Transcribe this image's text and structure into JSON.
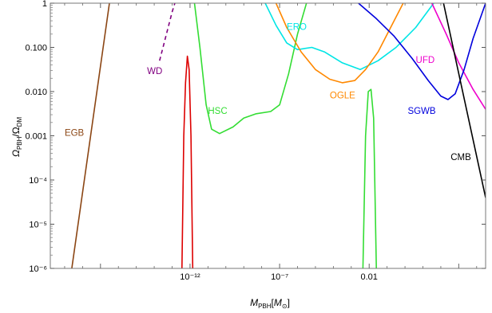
{
  "chart_data": {
    "type": "line",
    "xlabel": "M_PBH[M_⊙]",
    "ylabel": "Ω_PBH/Ω_DM",
    "x_scale": "log10",
    "y_scale": "log10",
    "xlim": [
      -19.8,
      4.5
    ],
    "ylim": [
      -6,
      0
    ],
    "x_ticks": [
      {
        "log": -12,
        "label": "10⁻¹²"
      },
      {
        "log": -7,
        "label": "10⁻⁷"
      },
      {
        "log": -2,
        "label": "0.01"
      }
    ],
    "y_ticks": [
      {
        "log": 0,
        "label": "1"
      },
      {
        "log": -1,
        "label": "0.100"
      },
      {
        "log": -2,
        "label": "0.010"
      },
      {
        "log": -3,
        "label": "0.001"
      },
      {
        "log": -4,
        "label": "10⁻⁴"
      },
      {
        "log": -5,
        "label": "10⁻⁵"
      },
      {
        "log": -6,
        "label": "10⁻⁶"
      }
    ],
    "series": [
      {
        "name": "EGB",
        "color": "#8B4513",
        "dashed": false,
        "points": [
          [
            -18.6,
            -6
          ],
          [
            -16.5,
            0
          ]
        ]
      },
      {
        "name": "WD",
        "color": "#800080",
        "dashed": true,
        "points": [
          [
            -13.7,
            -1.3
          ],
          [
            -13.0,
            -0.2
          ],
          [
            -12.85,
            0
          ]
        ]
      },
      {
        "name": "",
        "color": "#dd0000",
        "dashed": false,
        "points": [
          [
            -12.45,
            -6
          ],
          [
            -12.35,
            -3
          ],
          [
            -12.25,
            -1.8
          ],
          [
            -12.15,
            -1.2
          ],
          [
            -12.05,
            -1.5
          ],
          [
            -11.95,
            -3
          ],
          [
            -11.85,
            -6
          ]
        ]
      },
      {
        "name": "HSC",
        "color": "#33dd33",
        "dashed": false,
        "points": [
          [
            -11.75,
            0
          ],
          [
            -11.45,
            -1.0
          ],
          [
            -11.1,
            -2.3
          ],
          [
            -10.8,
            -2.85
          ],
          [
            -10.35,
            -2.95
          ],
          [
            -9.6,
            -2.8
          ],
          [
            -9.0,
            -2.6
          ],
          [
            -8.3,
            -2.5
          ],
          [
            -7.5,
            -2.45
          ],
          [
            -7.0,
            -2.3
          ],
          [
            -6.5,
            -1.6
          ],
          [
            -6.0,
            -0.7
          ],
          [
            -5.5,
            0
          ]
        ]
      },
      {
        "name": "",
        "color": "#33dd33",
        "dashed": false,
        "points": [
          [
            -2.35,
            -6
          ],
          [
            -2.2,
            -3
          ],
          [
            -2.05,
            -2.0
          ],
          [
            -1.9,
            -1.95
          ],
          [
            -1.75,
            -2.6
          ],
          [
            -1.6,
            -6
          ]
        ]
      },
      {
        "name": "ERO",
        "color": "#00e5e5",
        "dashed": false,
        "points": [
          [
            -7.8,
            0
          ],
          [
            -7.2,
            -0.5
          ],
          [
            -6.6,
            -0.9
          ],
          [
            -6.0,
            -1.05
          ],
          [
            -5.2,
            -1.0
          ],
          [
            -4.5,
            -1.1
          ],
          [
            -3.5,
            -1.35
          ],
          [
            -2.5,
            -1.5
          ],
          [
            -1.5,
            -1.3
          ],
          [
            -0.5,
            -1.0
          ],
          [
            0.6,
            -0.55
          ],
          [
            1.6,
            0
          ]
        ]
      },
      {
        "name": "OGLE",
        "color": "#ff8800",
        "dashed": false,
        "points": [
          [
            -7.2,
            0
          ],
          [
            -6.6,
            -0.55
          ],
          [
            -5.8,
            -1.1
          ],
          [
            -5.0,
            -1.5
          ],
          [
            -4.2,
            -1.72
          ],
          [
            -3.5,
            -1.8
          ],
          [
            -2.8,
            -1.75
          ],
          [
            -2.2,
            -1.5
          ],
          [
            -1.5,
            -1.1
          ],
          [
            -0.8,
            -0.55
          ],
          [
            -0.1,
            0
          ]
        ]
      },
      {
        "name": "UFD",
        "color": "#ee00cc",
        "dashed": false,
        "points": [
          [
            1.5,
            0
          ],
          [
            2.3,
            -0.7
          ],
          [
            3.0,
            -1.35
          ],
          [
            3.8,
            -1.95
          ],
          [
            4.5,
            -2.4
          ]
        ]
      },
      {
        "name": "SGWB",
        "color": "#0000dd",
        "dashed": false,
        "points": [
          [
            -2.6,
            0
          ],
          [
            -1.6,
            -0.35
          ],
          [
            -0.6,
            -0.75
          ],
          [
            0.4,
            -1.25
          ],
          [
            1.3,
            -1.75
          ],
          [
            2.0,
            -2.1
          ],
          [
            2.4,
            -2.18
          ],
          [
            2.8,
            -2.05
          ],
          [
            3.3,
            -1.5
          ],
          [
            3.8,
            -0.8
          ],
          [
            4.5,
            0
          ]
        ]
      },
      {
        "name": "CMB",
        "color": "#000000",
        "dashed": false,
        "points": [
          [
            2.15,
            0
          ],
          [
            4.5,
            -4.4
          ]
        ]
      }
    ],
    "annotations": [
      {
        "text": "EGB",
        "at": [
          -19.0,
          -3.0
        ]
      },
      {
        "text": "WD",
        "at": [
          -14.4,
          -1.6
        ]
      },
      {
        "text": "HSC",
        "at": [
          -11.0,
          -2.5
        ]
      },
      {
        "text": "ERO",
        "at": [
          -6.6,
          -0.6
        ]
      },
      {
        "text": "OGLE",
        "at": [
          -4.2,
          -2.15
        ]
      },
      {
        "text": "UFD",
        "at": [
          0.6,
          -1.35
        ]
      },
      {
        "text": "SGWB",
        "at": [
          0.15,
          -2.5
        ]
      },
      {
        "text": "CMB",
        "at": [
          2.55,
          -3.55
        ]
      }
    ]
  }
}
